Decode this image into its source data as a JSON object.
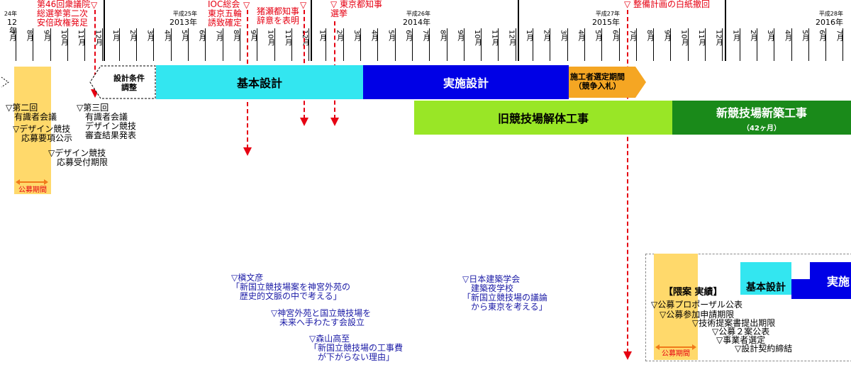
{
  "years": [
    {
      "era": "平成25年",
      "year": "2013年"
    },
    {
      "era": "平成26年",
      "year": "2014年"
    },
    {
      "era": "平成27年",
      "year": "2015年"
    },
    {
      "era": "平成28年",
      "year": "2016年"
    }
  ],
  "partial_year": {
    "era": "24年",
    "year": "12年"
  },
  "months": [
    "7月",
    "8月",
    "9月",
    "10月",
    "11月",
    "12月",
    "1月",
    "2月",
    "3月",
    "4月",
    "5月",
    "6月",
    "7月",
    "8月",
    "9月",
    "10月",
    "11月",
    "12月",
    "1月",
    "2月",
    "3月",
    "4月",
    "5月",
    "6月",
    "7月",
    "8月",
    "9月",
    "10月",
    "11月",
    "12月",
    "1月",
    "2月",
    "3月",
    "4月",
    "5月",
    "6月",
    "7月",
    "8月",
    "9月",
    "10月",
    "11月",
    "12月",
    "1月",
    "2月",
    "3月",
    "4月",
    "5月",
    "6月",
    "7月",
    "8月"
  ],
  "red_events": {
    "election": "第46回衆議院\n総選挙第二次\n安倍政権発足",
    "ioc": "IOC総会\n東京五輪\n誘致確定",
    "inose": "猪瀬都知事\n辞意を表明",
    "tokyo_election": "▽ 東京都知事\n選挙",
    "withdrawal": "▽ 整備計画の白紙撤回"
  },
  "phases": {
    "design_conditions": "設計条件\n調整",
    "basic_design": "基本設計",
    "detail_design": "実施設計",
    "contractor": "施工者選定期間\n（競争入札）",
    "demolition": "旧競技場解体工事",
    "new_construction": "新競技場新築工事",
    "new_construction_months": "（42ヶ月）",
    "bottom_basic_design": "基本設計",
    "bottom_detail_design": "実施"
  },
  "committee_events": {
    "second_meeting": "▽第二回\n　有識者会議",
    "design_competition": "▽デザイン競技\n　応募要項公示",
    "deadline": "▽デザイン競技\n　応募受付期限",
    "third_meeting": "▽第三回\n　有識者会議\n　デザイン競技\n　審査結果発表"
  },
  "recruit_period": "公募期間",
  "blue_events": {
    "maki": "▽槇文彦\n「新国立競技場案を神宮外苑の\n　歴史的文脈の中で考える」",
    "society": "▽神宮外苑と国立競技場を\n　未来へ手わたす会設立",
    "moriyama": "▽森山高至\n「新国立競技場の工事費\n　が下がらない理由」",
    "aij": "▽日本建築学会\n　建築夜学校\n「新国立競技場の議論\n　から東京を考える」"
  },
  "kuma": {
    "title": "【隈案 実績】",
    "items": [
      "▽公募プロポーザル公表",
      "▽公募参加申請期限",
      "▽技術提案書提出期限",
      "▽公募２案公表",
      "▽事業者選定",
      "▽設計契約締結"
    ],
    "period": "公募期間"
  },
  "colors": {
    "red": "#e60012",
    "cyan": "#33e6f0",
    "blue": "#0000e6",
    "orange": "#f5a623",
    "lightgreen": "#99e626",
    "darkgreen": "#1a8a1a",
    "yellow": "#ffd96b",
    "navy": "#1a1aa6"
  }
}
